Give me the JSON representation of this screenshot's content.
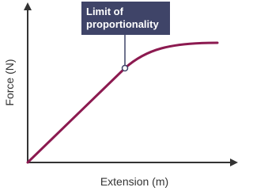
{
  "annotation": "Limit of proportionality",
  "y_axis_label": "Force (N)",
  "x_axis_label": "Extension (m)"
}
